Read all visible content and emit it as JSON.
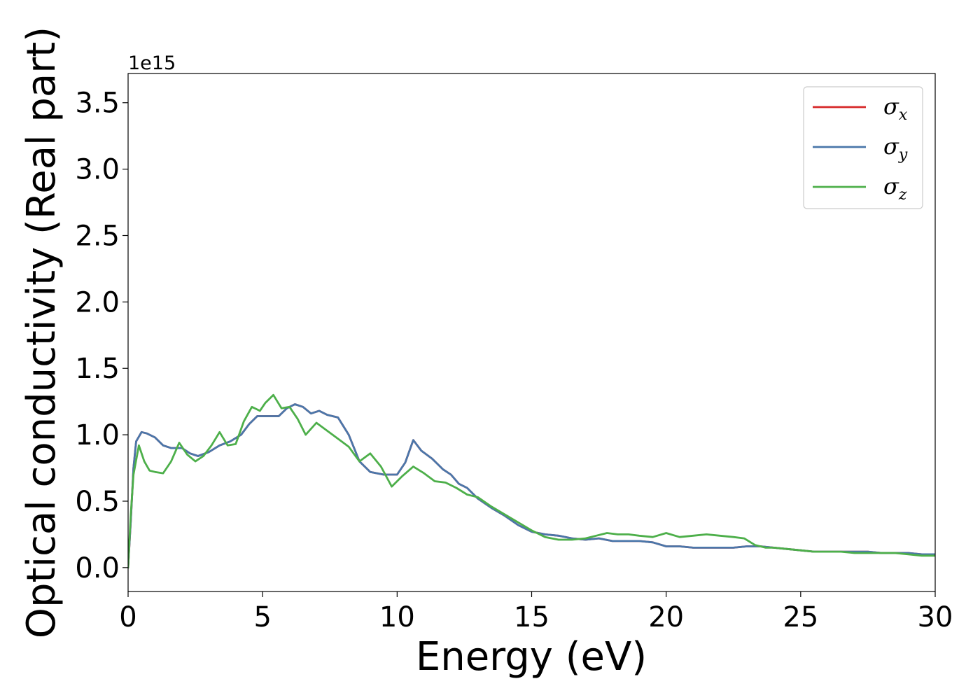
{
  "chart_data": {
    "type": "line",
    "xlabel": "Energy (eV)",
    "ylabel": "Optical conductivity (Real part)",
    "y_offset_label": "1e15",
    "y_multiplier": 1000000000000000.0,
    "xlim": [
      0,
      30
    ],
    "ylim": [
      -0.18,
      3.72
    ],
    "x_ticks": [
      0,
      5,
      10,
      15,
      20,
      25,
      30
    ],
    "x_tick_labels": [
      "0",
      "5",
      "10",
      "15",
      "20",
      "25",
      "30"
    ],
    "y_ticks": [
      0.0,
      0.5,
      1.0,
      1.5,
      2.0,
      2.5,
      3.0,
      3.5
    ],
    "y_tick_labels": [
      "0.0",
      "0.5",
      "1.0",
      "1.5",
      "2.0",
      "2.5",
      "3.0",
      "3.5"
    ],
    "grid": false,
    "legend_position": "top-right",
    "series": [
      {
        "name": "σx",
        "legend_main": "σ",
        "legend_sub": "x",
        "color": "#d62728",
        "x": [
          0,
          0.1,
          0.2,
          0.3,
          0.5,
          0.7,
          1.0,
          1.3,
          1.6,
          2.0,
          2.3,
          2.6,
          3.0,
          3.4,
          3.8,
          4.2,
          4.5,
          4.8,
          5.2,
          5.6,
          5.9,
          6.2,
          6.5,
          6.8,
          7.1,
          7.4,
          7.8,
          8.2,
          8.6,
          9.0,
          9.5,
          10.0,
          10.3,
          10.6,
          10.9,
          11.3,
          11.7,
          12.0,
          12.3,
          12.6,
          13.0,
          13.5,
          14.0,
          14.5,
          15.0,
          15.5,
          16.0,
          16.5,
          17.0,
          17.5,
          18.0,
          18.5,
          19.0,
          19.5,
          20.0,
          20.5,
          21.0,
          21.5,
          22.0,
          22.5,
          23.0,
          23.5,
          24.0,
          24.5,
          25.0,
          25.5,
          26.0,
          26.5,
          27.0,
          27.5,
          28.0,
          28.5,
          29.0,
          29.5,
          30.0
        ],
        "values": [
          0.0,
          0.35,
          0.75,
          0.95,
          1.02,
          1.01,
          0.98,
          0.92,
          0.9,
          0.9,
          0.86,
          0.84,
          0.87,
          0.92,
          0.95,
          1.0,
          1.08,
          1.14,
          1.14,
          1.14,
          1.2,
          1.23,
          1.21,
          1.16,
          1.18,
          1.15,
          1.13,
          1.0,
          0.8,
          0.72,
          0.7,
          0.7,
          0.79,
          0.96,
          0.88,
          0.82,
          0.74,
          0.7,
          0.63,
          0.6,
          0.52,
          0.45,
          0.39,
          0.32,
          0.27,
          0.25,
          0.24,
          0.22,
          0.21,
          0.22,
          0.2,
          0.2,
          0.2,
          0.19,
          0.16,
          0.16,
          0.15,
          0.15,
          0.15,
          0.15,
          0.16,
          0.16,
          0.15,
          0.14,
          0.13,
          0.12,
          0.12,
          0.12,
          0.12,
          0.12,
          0.11,
          0.11,
          0.11,
          0.1,
          0.1
        ]
      },
      {
        "name": "σy",
        "legend_main": "σ",
        "legend_sub": "y",
        "color": "#4a77aa",
        "x": [
          0,
          0.1,
          0.2,
          0.3,
          0.5,
          0.7,
          1.0,
          1.3,
          1.6,
          2.0,
          2.3,
          2.6,
          3.0,
          3.4,
          3.8,
          4.2,
          4.5,
          4.8,
          5.2,
          5.6,
          5.9,
          6.2,
          6.5,
          6.8,
          7.1,
          7.4,
          7.8,
          8.2,
          8.6,
          9.0,
          9.5,
          10.0,
          10.3,
          10.6,
          10.9,
          11.3,
          11.7,
          12.0,
          12.3,
          12.6,
          13.0,
          13.5,
          14.0,
          14.5,
          15.0,
          15.5,
          16.0,
          16.5,
          17.0,
          17.5,
          18.0,
          18.5,
          19.0,
          19.5,
          20.0,
          20.5,
          21.0,
          21.5,
          22.0,
          22.5,
          23.0,
          23.5,
          24.0,
          24.5,
          25.0,
          25.5,
          26.0,
          26.5,
          27.0,
          27.5,
          28.0,
          28.5,
          29.0,
          29.5,
          30.0
        ],
        "values": [
          0.0,
          0.35,
          0.75,
          0.95,
          1.02,
          1.01,
          0.98,
          0.92,
          0.9,
          0.9,
          0.86,
          0.84,
          0.87,
          0.92,
          0.95,
          1.0,
          1.08,
          1.14,
          1.14,
          1.14,
          1.2,
          1.23,
          1.21,
          1.16,
          1.18,
          1.15,
          1.13,
          1.0,
          0.8,
          0.72,
          0.7,
          0.7,
          0.79,
          0.96,
          0.88,
          0.82,
          0.74,
          0.7,
          0.63,
          0.6,
          0.52,
          0.45,
          0.39,
          0.32,
          0.27,
          0.25,
          0.24,
          0.22,
          0.21,
          0.22,
          0.2,
          0.2,
          0.2,
          0.19,
          0.16,
          0.16,
          0.15,
          0.15,
          0.15,
          0.15,
          0.16,
          0.16,
          0.15,
          0.14,
          0.13,
          0.12,
          0.12,
          0.12,
          0.12,
          0.12,
          0.11,
          0.11,
          0.11,
          0.1,
          0.1
        ]
      },
      {
        "name": "σz",
        "legend_main": "σ",
        "legend_sub": "z",
        "color": "#4daf4a",
        "x": [
          0,
          0.1,
          0.2,
          0.4,
          0.6,
          0.8,
          1.0,
          1.3,
          1.6,
          1.9,
          2.2,
          2.5,
          2.8,
          3.1,
          3.4,
          3.7,
          4.0,
          4.3,
          4.6,
          4.9,
          5.1,
          5.4,
          5.7,
          6.0,
          6.3,
          6.6,
          7.0,
          7.4,
          7.8,
          8.2,
          8.6,
          9.0,
          9.4,
          9.8,
          10.2,
          10.6,
          11.0,
          11.4,
          11.8,
          12.2,
          12.6,
          13.0,
          13.5,
          14.0,
          14.5,
          15.0,
          15.5,
          16.0,
          16.5,
          17.0,
          17.4,
          17.8,
          18.2,
          18.6,
          19.0,
          19.5,
          20.0,
          20.5,
          21.0,
          21.5,
          22.0,
          22.5,
          22.9,
          23.3,
          23.7,
          24.0,
          24.5,
          25.0,
          25.5,
          26.0,
          26.5,
          27.0,
          27.5,
          28.0,
          28.5,
          29.0,
          29.5,
          30.0
        ],
        "values": [
          0.0,
          0.4,
          0.7,
          0.92,
          0.8,
          0.73,
          0.72,
          0.71,
          0.8,
          0.94,
          0.85,
          0.8,
          0.84,
          0.92,
          1.02,
          0.92,
          0.93,
          1.1,
          1.21,
          1.18,
          1.24,
          1.3,
          1.2,
          1.21,
          1.12,
          1.0,
          1.09,
          1.03,
          0.97,
          0.91,
          0.8,
          0.86,
          0.76,
          0.61,
          0.69,
          0.76,
          0.71,
          0.65,
          0.64,
          0.6,
          0.55,
          0.53,
          0.46,
          0.4,
          0.34,
          0.28,
          0.23,
          0.21,
          0.21,
          0.22,
          0.24,
          0.26,
          0.25,
          0.25,
          0.24,
          0.23,
          0.26,
          0.23,
          0.24,
          0.25,
          0.24,
          0.23,
          0.22,
          0.17,
          0.15,
          0.15,
          0.14,
          0.13,
          0.12,
          0.12,
          0.12,
          0.11,
          0.11,
          0.11,
          0.11,
          0.1,
          0.09,
          0.09
        ]
      }
    ]
  }
}
